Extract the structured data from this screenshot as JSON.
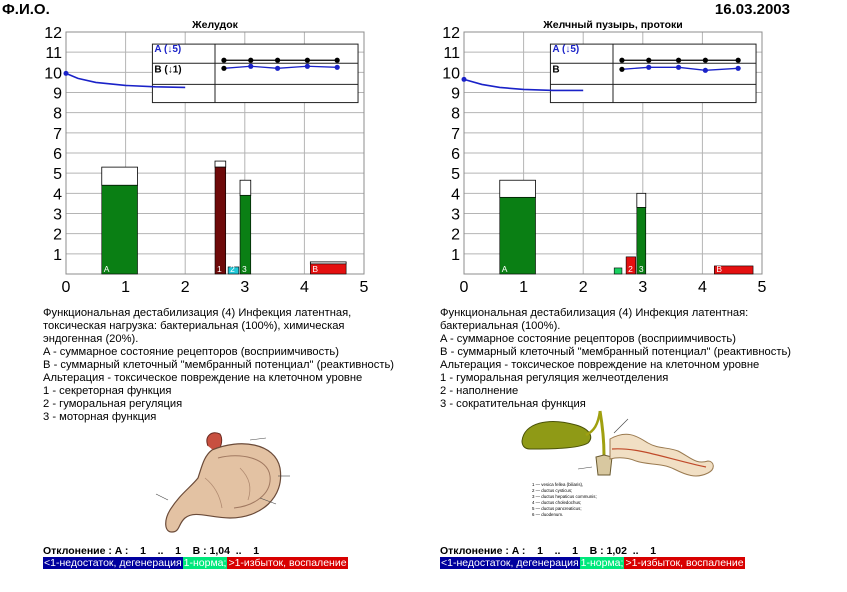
{
  "header": {
    "name": "Ф.И.О.",
    "date": "16.03.2003"
  },
  "colors": {
    "blue": "#1a22c8",
    "green": "#0a7f14",
    "darkred": "#6e0a0a",
    "red": "#e41010",
    "cyan": "#20c8d8",
    "lightgreen": "#19d060"
  },
  "chart_data": [
    {
      "type": "bar",
      "title": "Желудок",
      "ylim": [
        0,
        12
      ],
      "xlim": [
        0,
        5
      ],
      "x_ticks": [
        0,
        1,
        2,
        3,
        4,
        5
      ],
      "y_ticks": [
        1,
        2,
        3,
        4,
        5,
        6,
        7,
        8,
        9,
        10,
        11,
        12
      ],
      "grid": true,
      "curve": [
        [
          0,
          9.95
        ],
        [
          0.2,
          9.7
        ],
        [
          0.5,
          9.5
        ],
        [
          1.0,
          9.35
        ],
        [
          1.5,
          9.28
        ],
        [
          2.0,
          9.25
        ]
      ],
      "bars": [
        {
          "label": "A",
          "x0": 0.6,
          "x1": 1.2,
          "fill": 4.4,
          "outline": 5.3,
          "color": "green"
        },
        {
          "label": "1",
          "x0": 2.5,
          "x1": 2.68,
          "fill": 5.3,
          "outline": 5.6,
          "color": "darkred"
        },
        {
          "label": "2",
          "x0": 2.72,
          "x1": 2.9,
          "fill": 0.35,
          "outline": 0.35,
          "color": "cyan"
        },
        {
          "label": "3",
          "x0": 2.92,
          "x1": 3.1,
          "fill": 3.9,
          "outline": 4.65,
          "color": "green"
        },
        {
          "label": "B",
          "x0": 4.1,
          "x1": 4.7,
          "fill": 0.5,
          "outline": 0.6,
          "color": "red"
        }
      ],
      "inset": {
        "label_a": "A (↓5)",
        "label_b": "B (↓1)",
        "line_a": [
          10.6,
          10.6,
          10.6,
          10.6,
          10.6
        ],
        "line_b": [
          10.2,
          10.3,
          10.2,
          10.3,
          10.25
        ],
        "points_x": [
          2.65,
          3.1,
          3.55,
          4.05,
          4.55
        ]
      }
    },
    {
      "type": "bar",
      "title": "Желчный пузырь, протоки",
      "ylim": [
        0,
        12
      ],
      "xlim": [
        0,
        5
      ],
      "x_ticks": [
        0,
        1,
        2,
        3,
        4,
        5
      ],
      "y_ticks": [
        1,
        2,
        3,
        4,
        5,
        6,
        7,
        8,
        9,
        10,
        11,
        12
      ],
      "grid": true,
      "curve": [
        [
          0,
          9.65
        ],
        [
          0.3,
          9.4
        ],
        [
          0.6,
          9.25
        ],
        [
          1.0,
          9.15
        ],
        [
          1.5,
          9.1
        ],
        [
          2.0,
          9.1
        ]
      ],
      "bars": [
        {
          "label": "A",
          "x0": 0.6,
          "x1": 1.2,
          "fill": 3.8,
          "outline": 4.65,
          "color": "green"
        },
        {
          "label": "",
          "x0": 2.52,
          "x1": 2.65,
          "fill": 0.3,
          "outline": 0.3,
          "color": "lightgreen"
        },
        {
          "label": "2",
          "x0": 2.72,
          "x1": 2.88,
          "fill": 0.85,
          "outline": 0.85,
          "color": "red"
        },
        {
          "label": "3",
          "x0": 2.9,
          "x1": 3.05,
          "fill": 3.3,
          "outline": 4.0,
          "color": "green"
        },
        {
          "label": "B",
          "x0": 4.2,
          "x1": 4.85,
          "fill": 0.4,
          "outline": 0.4,
          "color": "red"
        }
      ],
      "inset": {
        "label_a": "A (↓5)",
        "label_b": "B",
        "line_a": [
          10.6,
          10.6,
          10.6,
          10.6,
          10.6
        ],
        "line_b": [
          10.15,
          10.25,
          10.25,
          10.1,
          10.2
        ],
        "points_x": [
          2.65,
          3.1,
          3.6,
          4.05,
          4.6
        ]
      }
    }
  ],
  "left": {
    "description": [
      "Функциональная дестабилизация (4) Инфекция латентная,",
      "токсическая нагрузка: бактериальная (100%), химическая",
      "эндогенная (20%).",
      "A - суммарное состояние рецепторов (восприимчивость)",
      "B - суммарный клеточный \"мембранный потенциал\" (реактивность)",
      "Альтерация - токсическое повреждение на клеточном уровне",
      "1 - секреторная функция",
      "2 - гуморальная регуляция",
      "3 - моторная функция"
    ],
    "deviation": "Отклонение : A :    1    ..    1    B : 1,04  ..    1"
  },
  "right": {
    "description": [
      "Функциональная дестабилизация (4) Инфекция латентная:",
      "бактериальная (100%).",
      "A - суммарное состояние рецепторов (восприимчивость)",
      "B - суммарный клеточный \"мембранный потенциал\" (реактивность)",
      "Альтерация - токсическое повреждение на клеточном уровне",
      "1 - гуморальная регуляция желчеотделения",
      "2 - наполнение",
      "3 - сократительная функция"
    ],
    "deviation": "Отклонение : A :    1    ..    1    B : 1,02  ..    1"
  },
  "legend": {
    "low": "<1-недостаток, дегенерация",
    "norm": "1-норма;",
    "high": ">1-избыток, воспаление"
  },
  "gall_captions": [
    "1 — vesica fellea (biliaris),",
    "2 — ductus cysticus;",
    "3 — ductus hepaticus communis;",
    "4 — ductus choledochus;",
    "5 — ductus pancreaticus;",
    "6 — duodenum."
  ]
}
